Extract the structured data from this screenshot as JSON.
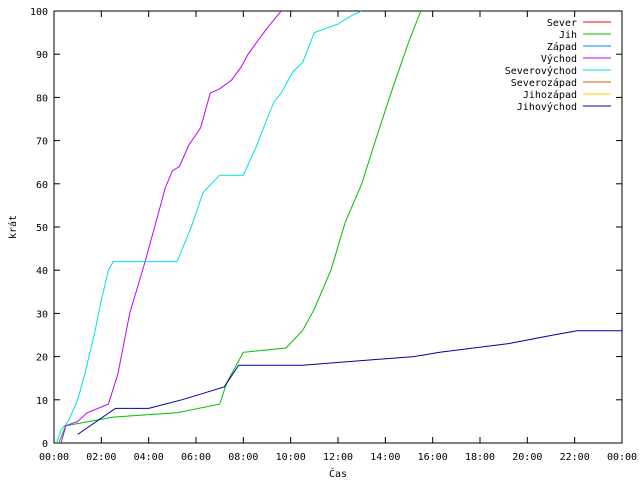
{
  "chart_data": {
    "type": "line",
    "title": "",
    "xlabel": "Čas",
    "ylabel": "krát",
    "xlim": [
      0,
      24
    ],
    "ylim": [
      0,
      100
    ],
    "x_unit": "hours",
    "x_ticks": [
      {
        "value": 0,
        "label": "00:00"
      },
      {
        "value": 2,
        "label": "02:00"
      },
      {
        "value": 4,
        "label": "04:00"
      },
      {
        "value": 6,
        "label": "06:00"
      },
      {
        "value": 8,
        "label": "08:00"
      },
      {
        "value": 10,
        "label": "10:00"
      },
      {
        "value": 12,
        "label": "12:00"
      },
      {
        "value": 14,
        "label": "14:00"
      },
      {
        "value": 16,
        "label": "16:00"
      },
      {
        "value": 18,
        "label": "18:00"
      },
      {
        "value": 20,
        "label": "20:00"
      },
      {
        "value": 22,
        "label": "22:00"
      },
      {
        "value": 24,
        "label": "00:00"
      }
    ],
    "y_ticks": [
      0,
      10,
      20,
      30,
      40,
      50,
      60,
      70,
      80,
      90,
      100
    ],
    "grid": false,
    "legend_position": "top-right",
    "series": [
      {
        "name": "Sever",
        "color": "#ff0000",
        "x": [],
        "y": []
      },
      {
        "name": "Jih",
        "color": "#00c000",
        "x": [
          0.2,
          0.5,
          2.5,
          5.2,
          7.0,
          7.3,
          8.0,
          9.8,
          10.5,
          11.0,
          11.7,
          12.3,
          13.0,
          13.7,
          14.3,
          15.0,
          15.5
        ],
        "y": [
          0,
          4,
          6,
          7,
          9,
          14,
          21,
          22,
          26,
          31,
          40,
          51,
          60,
          72,
          82,
          93,
          100
        ]
      },
      {
        "name": "Západ",
        "color": "#0080ff",
        "x": [],
        "y": []
      },
      {
        "name": "Východ",
        "color": "#c000ff",
        "x": [
          0.3,
          0.5,
          1.0,
          1.4,
          2.3,
          2.7,
          3.2,
          3.8,
          4.3,
          4.7,
          5.0,
          5.3,
          5.7,
          6.2,
          6.6,
          7.0,
          7.5,
          7.9,
          8.2,
          8.6,
          9.0,
          9.3,
          9.6
        ],
        "y": [
          0,
          4,
          5,
          7,
          9,
          16,
          30,
          41,
          51,
          59,
          63,
          64,
          69,
          73,
          81,
          82,
          84,
          87,
          90,
          93,
          96,
          98,
          100
        ]
      },
      {
        "name": "Severovýchod",
        "color": "#00e0e0",
        "x": [
          0.1,
          0.3,
          0.6,
          1.0,
          1.3,
          1.7,
          2.0,
          2.3,
          2.5,
          5.2,
          5.5,
          5.8,
          6.3,
          7.0,
          8.0,
          8.5,
          9.0,
          9.3,
          9.6,
          10.1,
          10.5,
          11.0,
          11.5,
          12.0,
          12.3,
          12.6,
          13.0
        ],
        "y": [
          0,
          3,
          5,
          10,
          16,
          25,
          33,
          40,
          42,
          42,
          46,
          50,
          58,
          62,
          62,
          68,
          75,
          79,
          81,
          86,
          88,
          95,
          96,
          97,
          98,
          99,
          100
        ]
      },
      {
        "name": "Severozápad",
        "color": "#c06000",
        "x": [],
        "y": []
      },
      {
        "name": "Jihozápad",
        "color": "#ffd000",
        "x": [],
        "y": []
      },
      {
        "name": "Jihovýchod",
        "color": "#0000a0",
        "x": [
          1.0,
          2.6,
          4.0,
          5.4,
          6.6,
          7.2,
          7.8,
          10.5,
          15.2,
          16.3,
          19.2,
          21.1,
          22.1,
          24.0
        ],
        "y": [
          2,
          8,
          8,
          10,
          12,
          13,
          18,
          18,
          20,
          21,
          23,
          25,
          26,
          26
        ]
      }
    ]
  }
}
